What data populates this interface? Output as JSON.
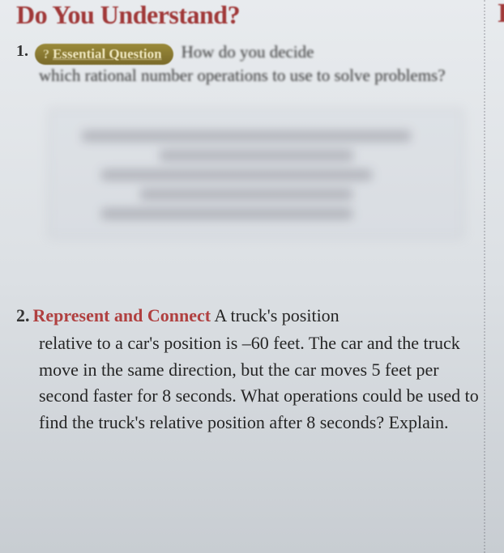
{
  "header": {
    "title": "Do You Understand?",
    "partial_right": "I"
  },
  "q1": {
    "number": "1.",
    "badge_q": "?",
    "badge_text": "Essential Question",
    "line1_inline": "How do you decide",
    "body": "which rational number operations to use to solve problems?"
  },
  "q2": {
    "number": "2.",
    "label": "Represent and Connect",
    "line1_inline": " A truck's position",
    "body": "relative to a car's position is –60 feet. The car and the truck move in the same direction, but the car moves 5 feet per second faster for 8 seconds. What operations could be used to find the truck's relative position after 8 seconds? Explain."
  },
  "colors": {
    "heading": "#a03838",
    "badge_bg": "#7a6a2a",
    "badge_text": "#f0e8c0",
    "body_text": "#252525"
  }
}
